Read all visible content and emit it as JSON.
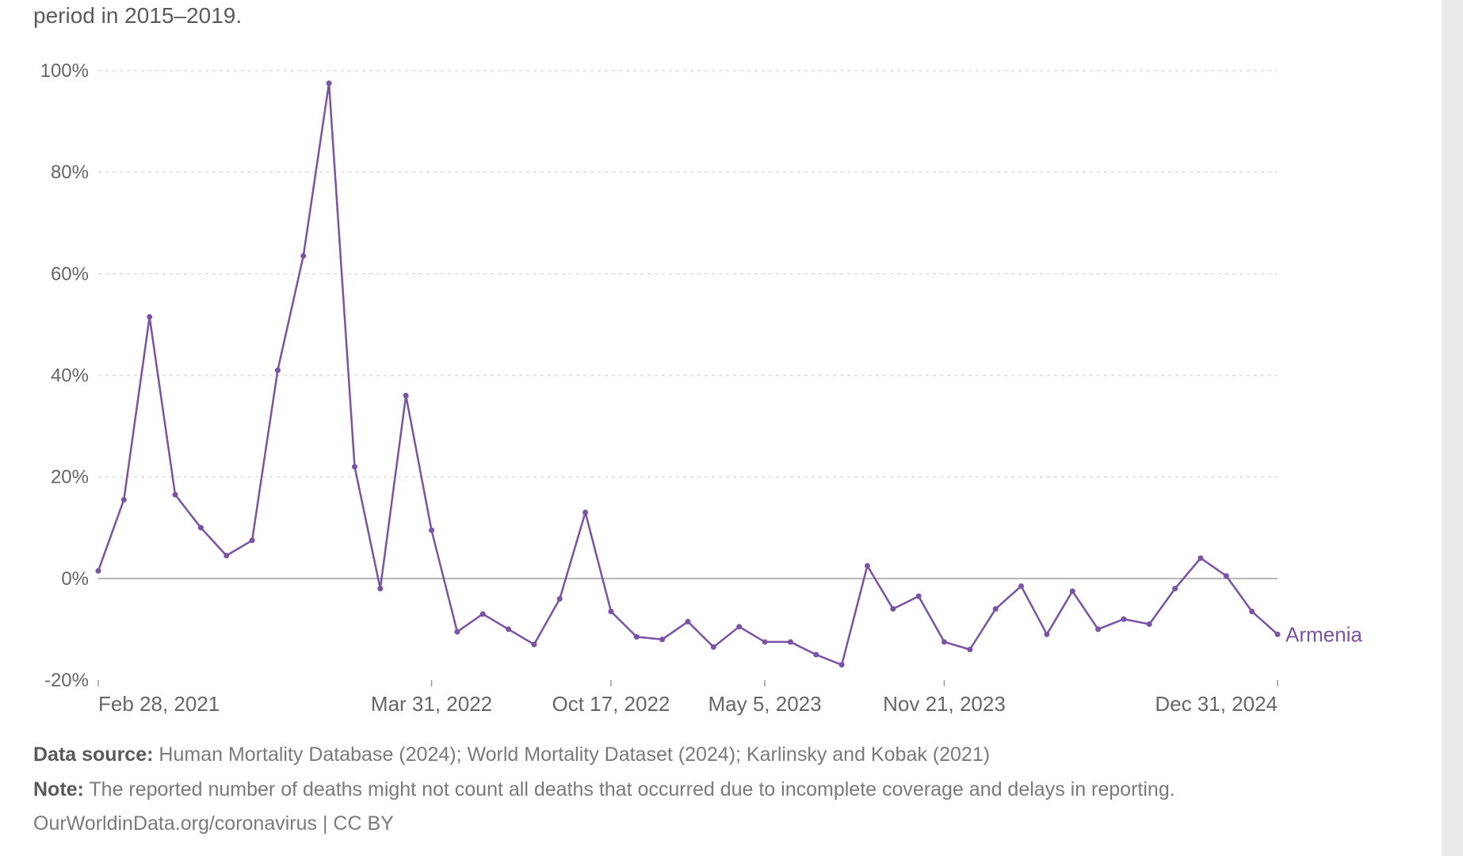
{
  "subtitle_fragment": "period in 2015–2019.",
  "chart_data": {
    "type": "line",
    "title": "",
    "xlabel": "",
    "ylabel": "",
    "ylim": [
      -20,
      100
    ],
    "yticks": [
      -20,
      0,
      20,
      40,
      60,
      80,
      100
    ],
    "ytick_labels": [
      "-20%",
      "0%",
      "20%",
      "40%",
      "60%",
      "80%",
      "100%"
    ],
    "xticks": [
      {
        "index": 0,
        "label": "Feb 28, 2021"
      },
      {
        "index": 13,
        "label": "Mar 31, 2022"
      },
      {
        "index": 20,
        "label": "Oct 17, 2022"
      },
      {
        "index": 26,
        "label": "May 5, 2023"
      },
      {
        "index": 33,
        "label": "Nov 21, 2023"
      },
      {
        "index": 46,
        "label": "Dec 31, 2024"
      }
    ],
    "grid": true,
    "series": [
      {
        "name": "Armenia",
        "color": "#7a52a8",
        "values": [
          1.5,
          15.5,
          51.5,
          16.5,
          10,
          4.5,
          7.5,
          41,
          63.5,
          97.5,
          22,
          -2,
          36,
          9.5,
          -10.5,
          -7,
          -10,
          -13,
          -4,
          13,
          -6.5,
          -11.5,
          -12,
          -8.5,
          -13.5,
          -9.5,
          -12.5,
          -12.5,
          -15,
          -17,
          2.5,
          -6,
          -3.5,
          -12.5,
          -14,
          -6,
          -1.5,
          -11,
          -2.5,
          -10,
          -8,
          -9,
          -2,
          4,
          0.5,
          -6.5,
          -11
        ]
      }
    ]
  },
  "footer": {
    "source_label": "Data source:",
    "source_text": "Human Mortality Database (2024); World Mortality Dataset (2024); Karlinsky and Kobak (2021)",
    "note_label": "Note:",
    "note_text": "The reported number of deaths might not count all deaths that occurred due to incomplete coverage and delays in reporting.",
    "credit_site": "OurWorldinData.org/coronavirus",
    "credit_sep": " | ",
    "credit_license": "CC BY"
  }
}
